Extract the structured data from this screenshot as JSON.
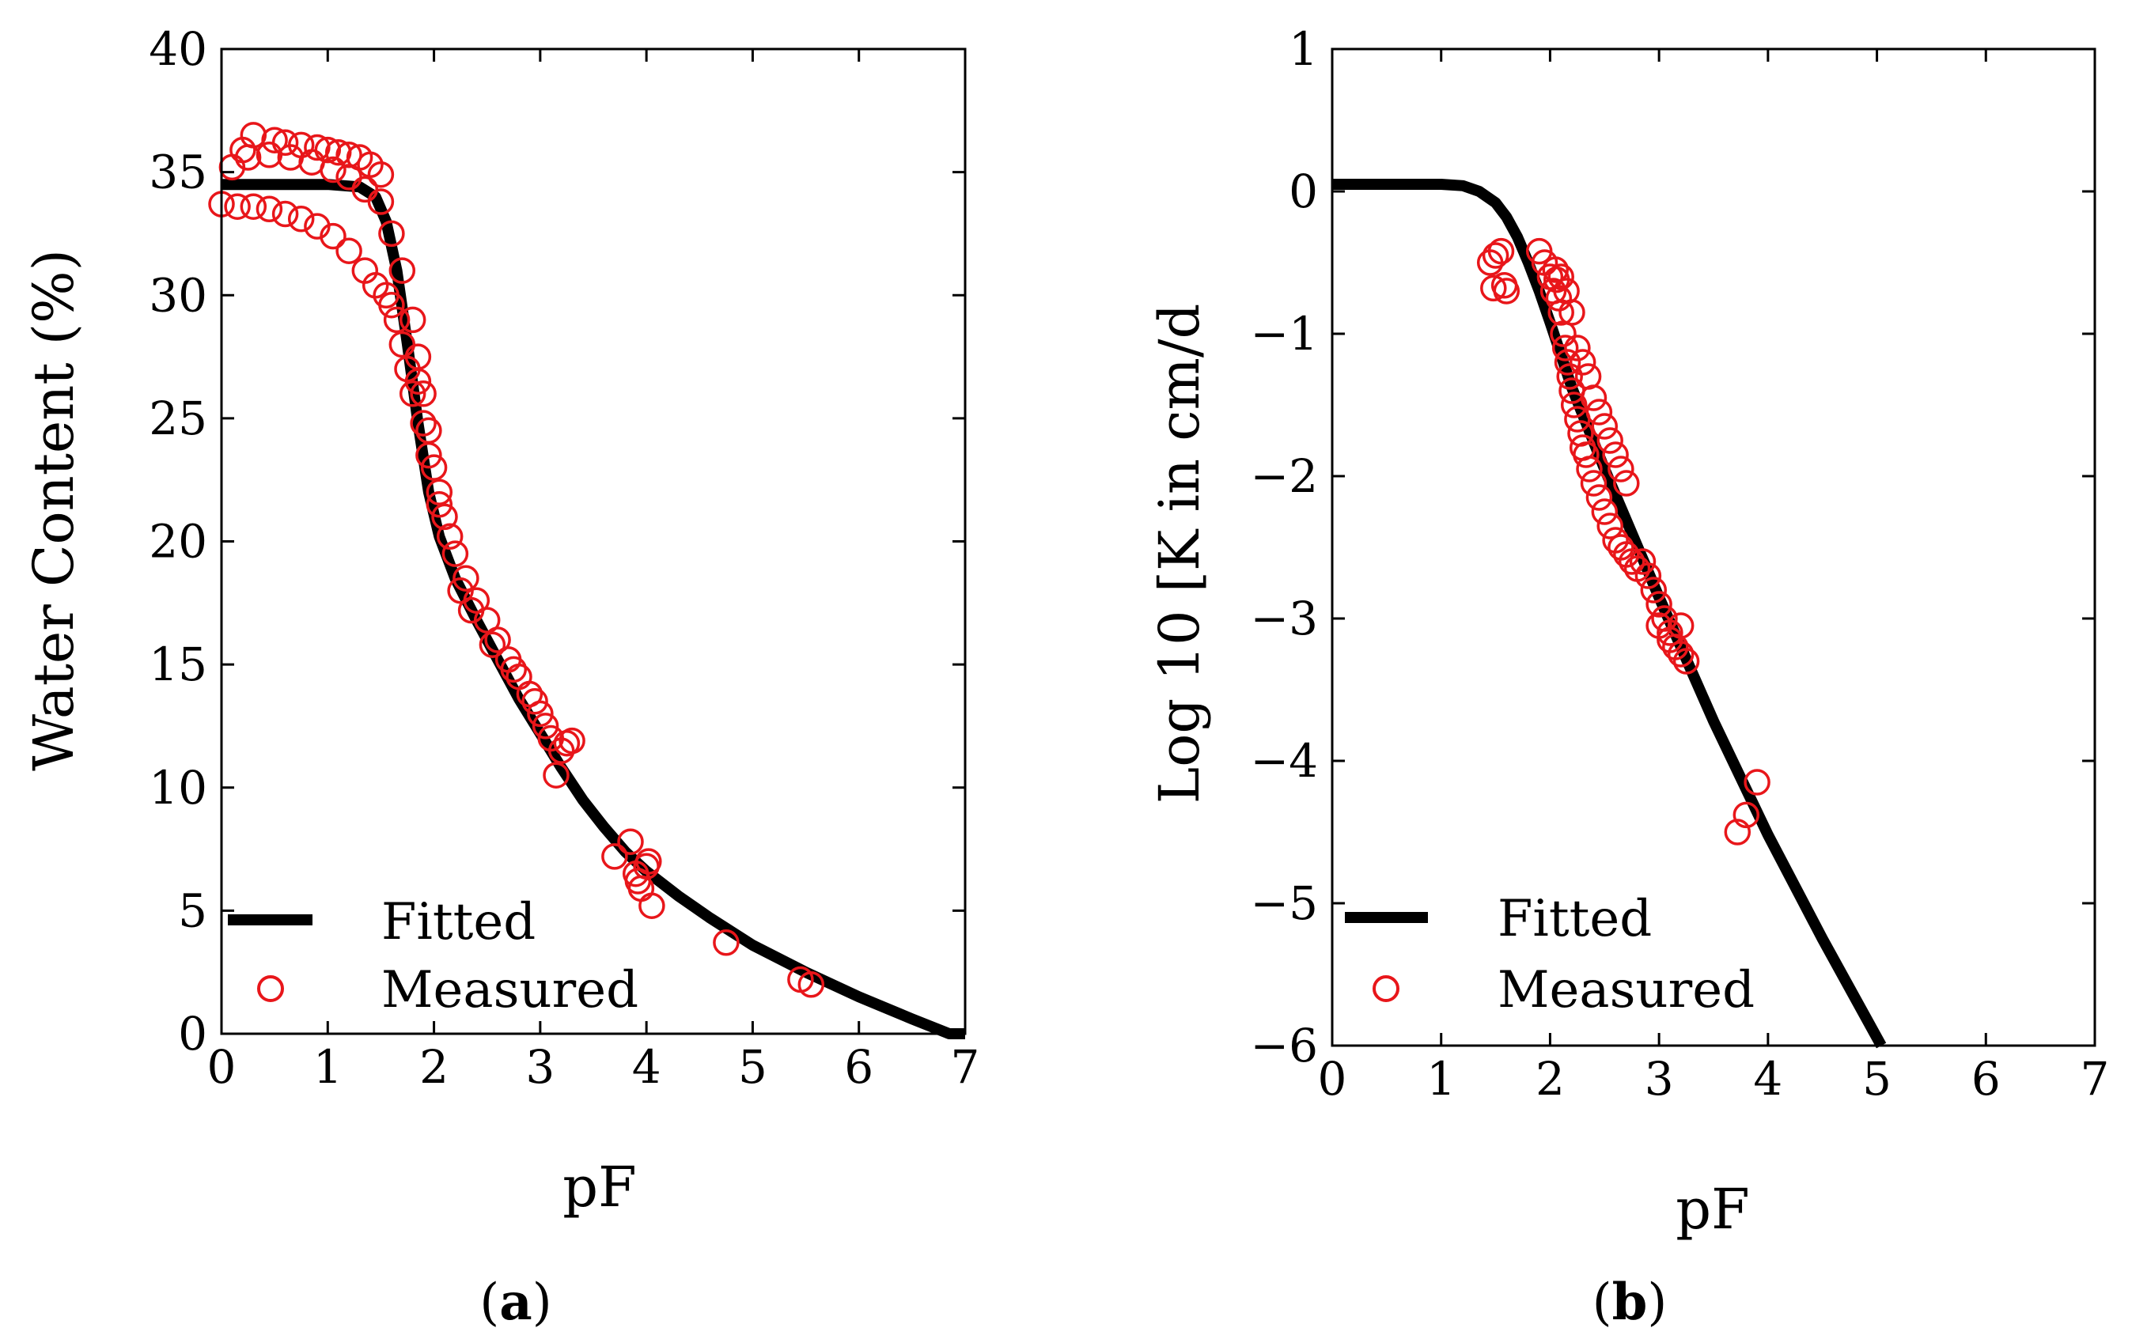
{
  "chart_data": [
    {
      "type": "scatter",
      "panel": "a",
      "panel_label": "a",
      "xlabel": "pF",
      "ylabel": "Water Content (%)",
      "xlim": [
        0,
        7
      ],
      "ylim": [
        0,
        40
      ],
      "xticks": [
        "0",
        "1",
        "2",
        "3",
        "4",
        "5",
        "6",
        "7"
      ],
      "yticks": [
        "0",
        "5",
        "10",
        "15",
        "20",
        "25",
        "30",
        "35",
        "40"
      ],
      "legend": {
        "placement": "bottom-left",
        "fitted": "Fitted",
        "measured": "Measured"
      },
      "series": [
        {
          "name": "Fitted",
          "style": "line",
          "x": [
            0,
            0.5,
            1.0,
            1.3,
            1.45,
            1.55,
            1.65,
            1.75,
            1.85,
            1.95,
            2.05,
            2.2,
            2.4,
            2.6,
            2.8,
            3.0,
            3.2,
            3.4,
            3.6,
            3.8,
            4.0,
            4.3,
            4.6,
            5.0,
            5.5,
            6.0,
            6.5,
            6.85,
            7.0
          ],
          "y": [
            34.5,
            34.5,
            34.5,
            34.4,
            34.0,
            33.0,
            31.0,
            28.0,
            24.8,
            22.0,
            20.2,
            18.5,
            16.8,
            15.2,
            13.6,
            12.2,
            10.8,
            9.5,
            8.4,
            7.4,
            6.6,
            5.6,
            4.7,
            3.6,
            2.5,
            1.5,
            0.6,
            0.0,
            0.0
          ]
        },
        {
          "name": "Measured",
          "style": "open-circle",
          "x": [
            0.0,
            0.15,
            0.3,
            0.45,
            0.6,
            0.75,
            0.9,
            1.05,
            1.2,
            1.35,
            1.45,
            1.55,
            1.6,
            1.65,
            1.7,
            1.75,
            1.8,
            0.2,
            0.3,
            0.5,
            0.6,
            0.75,
            0.9,
            1.0,
            1.1,
            1.2,
            1.3,
            1.4,
            1.5,
            0.1,
            0.25,
            0.45,
            0.65,
            0.85,
            1.05,
            1.2,
            1.35,
            1.5,
            1.6,
            1.7,
            1.8,
            1.85,
            1.9,
            1.95,
            2.0,
            2.05,
            2.1,
            2.15,
            2.2,
            2.3,
            2.4,
            2.5,
            2.6,
            2.7,
            2.8,
            2.9,
            3.0,
            3.05,
            3.1,
            3.2,
            3.25,
            3.3,
            3.15,
            2.95,
            2.75,
            2.55,
            2.35,
            2.25,
            2.05,
            1.95,
            1.9,
            1.85,
            3.7,
            3.85,
            3.9,
            3.95,
            4.0,
            4.05,
            3.92,
            4.02,
            4.75,
            5.45,
            5.55
          ],
          "y": [
            33.7,
            33.6,
            33.6,
            33.5,
            33.3,
            33.1,
            32.8,
            32.4,
            31.8,
            31.0,
            30.4,
            30.0,
            29.6,
            29.0,
            28.0,
            27.0,
            26.0,
            35.9,
            36.5,
            36.3,
            36.2,
            36.1,
            36.0,
            35.9,
            35.8,
            35.7,
            35.6,
            35.3,
            34.9,
            35.2,
            35.6,
            35.7,
            35.6,
            35.4,
            35.1,
            34.8,
            34.3,
            33.8,
            32.5,
            31.0,
            29.0,
            27.5,
            26.0,
            24.5,
            23.0,
            22.0,
            21.0,
            20.2,
            19.5,
            18.5,
            17.6,
            16.8,
            16.0,
            15.2,
            14.5,
            13.8,
            13.0,
            12.5,
            12.0,
            11.5,
            11.8,
            11.9,
            10.5,
            13.5,
            14.8,
            15.8,
            17.2,
            18.0,
            21.5,
            23.5,
            24.8,
            26.5,
            7.2,
            7.8,
            6.5,
            5.9,
            6.8,
            5.2,
            6.2,
            7.0,
            3.7,
            2.2,
            2.0
          ]
        }
      ]
    },
    {
      "type": "scatter",
      "panel": "b",
      "panel_label": "b",
      "xlabel": "pF",
      "ylabel": "Log 10 [K in cm/d",
      "xlim": [
        0,
        7
      ],
      "ylim": [
        -6,
        1
      ],
      "xticks": [
        "0",
        "1",
        "2",
        "3",
        "4",
        "5",
        "6",
        "7"
      ],
      "yticks": [
        "−6",
        "−5",
        "−4",
        "−3",
        "−2",
        "−1",
        "0",
        "1"
      ],
      "legend": {
        "placement": "bottom-left",
        "fitted": "Fitted",
        "measured": "Measured"
      },
      "series": [
        {
          "name": "Fitted",
          "style": "line",
          "x": [
            0,
            0.5,
            1.0,
            1.2,
            1.35,
            1.5,
            1.6,
            1.7,
            1.8,
            1.9,
            2.0,
            2.2,
            2.5,
            3.0,
            3.5,
            4.0,
            4.5,
            5.04
          ],
          "y": [
            0.05,
            0.05,
            0.05,
            0.04,
            0.0,
            -0.08,
            -0.18,
            -0.32,
            -0.5,
            -0.7,
            -0.92,
            -1.38,
            -1.95,
            -2.85,
            -3.72,
            -4.52,
            -5.25,
            -6.0
          ]
        },
        {
          "name": "Measured",
          "style": "open-circle",
          "x": [
            1.45,
            1.5,
            1.55,
            1.6,
            1.48,
            1.58,
            1.9,
            1.95,
            2.0,
            2.03,
            2.06,
            2.08,
            2.1,
            2.12,
            2.14,
            2.16,
            2.18,
            2.2,
            2.22,
            2.25,
            2.28,
            2.3,
            2.33,
            2.36,
            2.4,
            2.45,
            2.5,
            2.55,
            2.6,
            2.65,
            2.7,
            2.75,
            2.8,
            2.85,
            2.9,
            2.95,
            3.0,
            3.05,
            3.1,
            3.15,
            3.2,
            3.25,
            2.25,
            2.3,
            2.35,
            2.4,
            2.45,
            2.5,
            2.55,
            2.6,
            2.65,
            2.7,
            2.2,
            2.15,
            2.1,
            2.05,
            3.0,
            3.1,
            3.2,
            3.72,
            3.8,
            3.9
          ],
          "y": [
            -0.5,
            -0.45,
            -0.42,
            -0.7,
            -0.68,
            -0.66,
            -0.42,
            -0.5,
            -0.6,
            -0.7,
            -0.62,
            -0.75,
            -0.85,
            -1.0,
            -1.1,
            -1.2,
            -1.3,
            -1.4,
            -1.5,
            -1.6,
            -1.7,
            -1.8,
            -1.85,
            -1.95,
            -2.05,
            -2.15,
            -2.25,
            -2.35,
            -2.45,
            -2.5,
            -2.55,
            -2.6,
            -2.65,
            -2.6,
            -2.7,
            -2.8,
            -2.9,
            -3.0,
            -3.1,
            -3.2,
            -3.25,
            -3.3,
            -1.1,
            -1.2,
            -1.3,
            -1.45,
            -1.55,
            -1.65,
            -1.75,
            -1.85,
            -1.95,
            -2.05,
            -0.85,
            -0.7,
            -0.6,
            -0.55,
            -3.05,
            -3.15,
            -3.05,
            -4.5,
            -4.38,
            -4.15
          ]
        }
      ]
    }
  ]
}
